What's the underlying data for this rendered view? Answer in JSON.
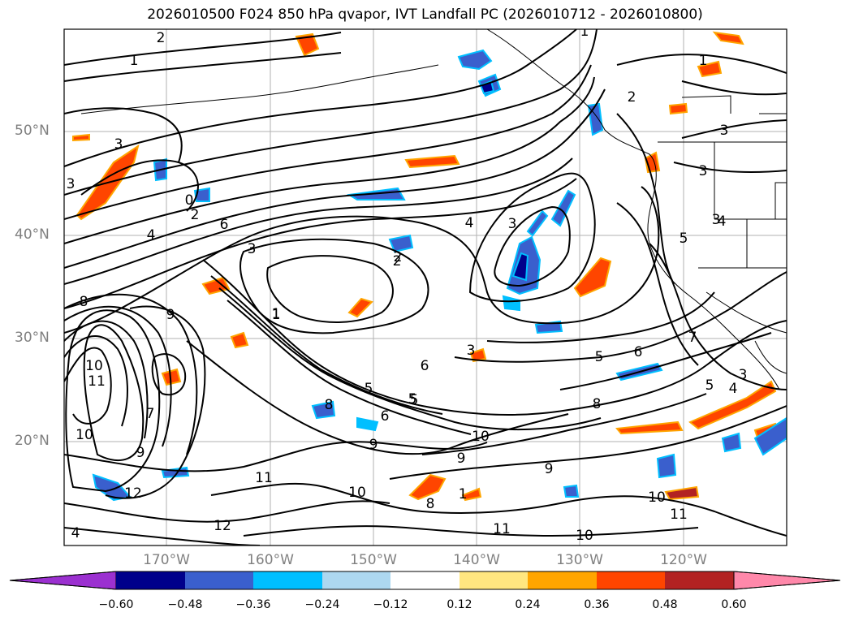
{
  "title": "2026010500 F024 850 hPa qvapor, IVT Landfall PC (2026010712 - 2026010800)",
  "map": {
    "lat_labels": [
      "50°N",
      "40°N",
      "30°N",
      "20°N"
    ],
    "lon_labels": [
      "170°W",
      "160°W",
      "150°W",
      "140°W",
      "130°W",
      "120°W"
    ],
    "contour_color": "#000000",
    "grid_color": "#a0a0a0",
    "contour_labels": [
      "1",
      "2",
      "1",
      "1",
      "2",
      "3",
      "3",
      "3",
      "3",
      "3",
      "0",
      "2",
      "4",
      "6",
      "3",
      "1",
      "2",
      "4",
      "3",
      "4",
      "5",
      "8",
      "9",
      "10",
      "11",
      "12",
      "7",
      "6",
      "5",
      "5",
      "8",
      "9",
      "9",
      "10",
      "11",
      "12",
      "10",
      "10",
      "11",
      "11",
      "10",
      "4",
      "5",
      "6",
      "7",
      "8",
      "9",
      "5",
      "4",
      "3",
      "2",
      "1",
      "3",
      "5",
      "6",
      "10",
      "9",
      "8",
      "1"
    ]
  },
  "colorbar": {
    "ticks": [
      "−0.60",
      "−0.48",
      "−0.36",
      "−0.24",
      "−0.12",
      "0.12",
      "0.24",
      "0.36",
      "0.48",
      "0.60"
    ],
    "colors": [
      "#9b30d0",
      "#00008b",
      "#3a5fcd",
      "#00bfff",
      "#add8f0",
      "#ffffff",
      "#ffe680",
      "#ffa500",
      "#ff4500",
      "#b22222",
      "#ff88aa"
    ]
  }
}
